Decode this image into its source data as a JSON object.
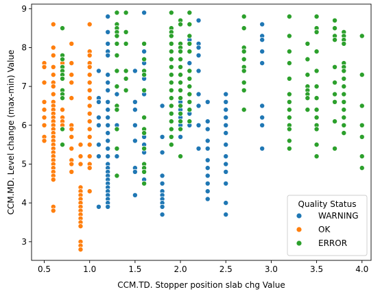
{
  "chart_data": {
    "type": "scatter",
    "xlabel": "CCM.TD. Stopper position slab chg Value",
    "ylabel": "CCM.MD. Level change (max-min) Value",
    "xlim": [
      0.36,
      4.1
    ],
    "ylim": [
      2.52,
      9.12
    ],
    "xticks": [
      "0.5",
      "1.0",
      "1.5",
      "2.0",
      "2.5",
      "3.0",
      "3.5",
      "4.0"
    ],
    "yticks": [
      "3",
      "4",
      "5",
      "6",
      "7",
      "8",
      "9"
    ],
    "grid": false,
    "legend": {
      "title": "Quality Status",
      "placement": "lower-right",
      "entries": [
        "WARNING",
        "OK",
        "ERROR"
      ]
    },
    "colors": {
      "WARNING": "#1f77b4",
      "OK": "#ff7f0e",
      "ERROR": "#2ca02c"
    },
    "series": [
      {
        "name": "WARNING",
        "columns": [
          {
            "x": 1.1,
            "y": [
              7.4,
              6.7,
              6.6,
              6.2,
              6.0,
              5.5,
              5.2,
              3.9
            ]
          },
          {
            "x": 1.2,
            "y": [
              8.8,
              8.4,
              8.1,
              7.9,
              7.8,
              7.3,
              7.1,
              6.9,
              6.6,
              6.4,
              6.2,
              6.0,
              5.8,
              5.6,
              5.4,
              5.2,
              5.0,
              4.9,
              4.8,
              4.7,
              4.6,
              4.5,
              4.4,
              4.3,
              4.2,
              4.1,
              4.0,
              3.9
            ]
          },
          {
            "x": 1.3,
            "y": [
              7.0,
              6.8,
              6.0,
              5.2
            ]
          },
          {
            "x": 1.5,
            "y": [
              7.4,
              6.6,
              6.4,
              6.0,
              5.6,
              4.9,
              4.8,
              4.2
            ]
          },
          {
            "x": 1.6,
            "y": [
              8.9,
              7.9,
              7.6,
              7.2,
              6.8,
              5.9,
              5.7,
              5.5,
              5.3,
              5.0,
              4.6
            ]
          },
          {
            "x": 1.8,
            "y": [
              6.5,
              5.7,
              5.3,
              4.7,
              4.5,
              4.3,
              4.2,
              4.1,
              4.0,
              3.9,
              3.7
            ]
          },
          {
            "x": 2.0,
            "y": [
              6.6,
              6.4,
              6.2,
              6.0,
              5.9,
              5.7
            ]
          },
          {
            "x": 2.1,
            "y": [
              8.2,
              7.6,
              6.3,
              6.0
            ]
          },
          {
            "x": 2.2,
            "y": [
              8.7,
              8.1,
              8.0,
              7.8,
              7.4,
              6.8,
              6.5,
              6.0,
              5.4
            ]
          },
          {
            "x": 2.3,
            "y": [
              6.6,
              6.1,
              5.9,
              5.6,
              5.4,
              5.1,
              4.9,
              4.7,
              4.5,
              4.3,
              4.1
            ]
          },
          {
            "x": 2.5,
            "y": [
              6.8,
              6.6,
              6.4,
              6.2,
              6.0,
              5.8,
              5.5,
              5.2,
              5.0,
              4.8,
              4.5,
              4.0,
              3.7
            ]
          },
          {
            "x": 2.9,
            "y": [
              8.6,
              8.3,
              8.2,
              7.9,
              7.6,
              6.5,
              6.2,
              6.0,
              5.4
            ]
          }
        ]
      },
      {
        "name": "OK",
        "columns": [
          {
            "x": 0.5,
            "y": [
              7.6,
              7.5,
              7.1,
              6.6,
              6.4,
              6.2,
              6.0,
              5.7,
              5.6
            ]
          },
          {
            "x": 0.6,
            "y": [
              8.6,
              8.0,
              7.8,
              7.5,
              7.3,
              7.1,
              7.0,
              6.8,
              6.6,
              6.5,
              6.4,
              6.3,
              6.2,
              6.1,
              6.0,
              5.9,
              5.8,
              5.7,
              5.6,
              5.5,
              5.4,
              5.3,
              5.2,
              5.1,
              5.0,
              4.9,
              4.8,
              4.7,
              4.6,
              3.9,
              3.8
            ]
          },
          {
            "x": 0.7,
            "y": [
              7.6,
              7.5,
              7.4,
              6.8,
              6.4,
              6.2,
              6.1,
              6.0,
              5.9
            ]
          },
          {
            "x": 0.8,
            "y": [
              8.1,
              7.6,
              7.3,
              7.1,
              6.7,
              6.0,
              5.9,
              5.7,
              5.4,
              5.1,
              5.0,
              4.8
            ]
          },
          {
            "x": 0.9,
            "y": [
              5.5,
              5.2,
              5.0,
              4.4,
              4.3,
              4.2,
              4.1,
              4.0,
              3.9,
              3.8,
              3.7,
              3.6,
              3.5,
              3.4,
              3.0,
              2.9,
              2.8
            ]
          },
          {
            "x": 1.0,
            "y": [
              8.6,
              7.9,
              7.8,
              7.6,
              7.5,
              7.3,
              7.1,
              6.9,
              6.7,
              6.5,
              6.3,
              6.1,
              5.9,
              5.7,
              5.5,
              5.2,
              5.0,
              4.9,
              4.3
            ]
          }
        ]
      },
      {
        "name": "ERROR",
        "columns": [
          {
            "x": 0.7,
            "y": [
              8.5,
              7.8,
              7.7,
              7.5,
              7.4,
              7.3,
              7.2,
              6.9,
              6.8,
              6.7,
              5.9,
              5.5
            ]
          },
          {
            "x": 1.3,
            "y": [
              8.9,
              8.6,
              8.5,
              8.4,
              8.3,
              8.1,
              7.8,
              7.4,
              7.0,
              6.5,
              6.4,
              5.9,
              5.4,
              4.7
            ]
          },
          {
            "x": 1.4,
            "y": [
              8.9,
              8.4,
              8.1,
              7.4,
              7.2,
              6.9
            ]
          },
          {
            "x": 1.6,
            "y": [
              8.1,
              7.7,
              7.4,
              7.3,
              6.9,
              6.2,
              5.9,
              5.8,
              5.4,
              5.0,
              4.9,
              4.8,
              4.5
            ]
          },
          {
            "x": 1.9,
            "y": [
              8.9,
              8.5,
              8.4,
              8.3,
              8.1,
              7.9,
              7.7,
              7.5,
              7.3,
              7.1,
              6.9,
              6.7,
              6.5,
              6.3,
              6.1,
              5.9,
              5.7,
              5.5
            ]
          },
          {
            "x": 2.0,
            "y": [
              8.7,
              8.6,
              8.1,
              8.0,
              7.9,
              7.7,
              7.5,
              7.3,
              7.1,
              6.9,
              6.7,
              6.5,
              6.3,
              6.1,
              5.9,
              5.2
            ]
          },
          {
            "x": 2.1,
            "y": [
              8.9,
              8.6,
              8.3,
              8.1,
              7.9,
              7.4,
              7.2,
              7.0,
              6.8,
              6.6,
              6.4,
              6.1
            ]
          },
          {
            "x": 2.7,
            "y": [
              8.8,
              8.5,
              8.0,
              7.9,
              7.7,
              7.5,
              7.4,
              7.1,
              6.9,
              6.4
            ]
          },
          {
            "x": 3.2,
            "y": [
              8.8,
              8.3,
              7.9,
              7.6,
              7.2,
              6.8,
              6.6,
              6.4,
              6.2,
              6.0,
              5.9,
              5.6,
              5.4
            ]
          },
          {
            "x": 3.4,
            "y": [
              8.1,
              7.7,
              7.3,
              7.0,
              6.9,
              6.8,
              6.7,
              6.4
            ]
          },
          {
            "x": 3.5,
            "y": [
              8.8,
              8.5,
              8.4,
              7.9,
              7.4,
              7.0,
              6.7,
              6.4,
              6.2,
              6.0,
              5.9,
              5.5,
              5.2
            ]
          },
          {
            "x": 3.7,
            "y": [
              8.7,
              8.5,
              8.3,
              8.2,
              7.5,
              7.1,
              6.8,
              6.6,
              6.1,
              5.4
            ]
          },
          {
            "x": 3.8,
            "y": [
              8.4,
              8.3,
              8.2,
              8.1,
              7.6,
              7.5,
              7.4,
              7.2,
              7.0,
              6.8,
              6.6,
              6.4,
              6.2,
              6.0,
              5.8
            ]
          },
          {
            "x": 4.0,
            "y": [
              8.3,
              7.3,
              6.5,
              6.0,
              5.7,
              5.2,
              4.9
            ]
          }
        ]
      }
    ]
  }
}
